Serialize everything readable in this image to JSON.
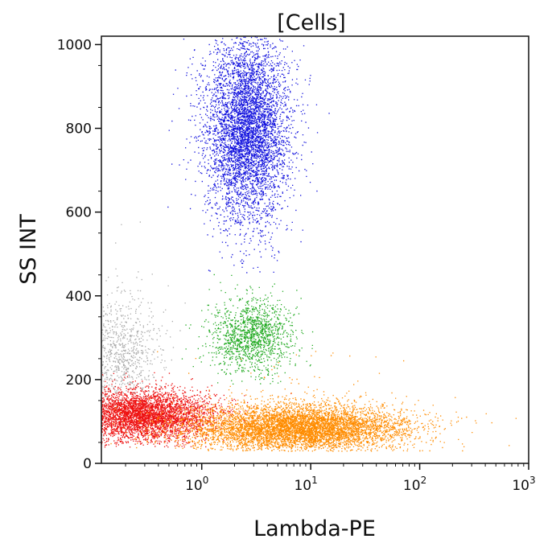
{
  "chart_data": {
    "type": "scatter",
    "title": "[Cells]",
    "xlabel": "Lambda-PE",
    "ylabel": "SS INT",
    "x_scale": "log",
    "xlim": [
      0.12,
      1000
    ],
    "ylim": [
      0,
      1020
    ],
    "x_ticks": [
      {
        "value": 1,
        "base": "10",
        "exp": "0"
      },
      {
        "value": 10,
        "base": "10",
        "exp": "1"
      },
      {
        "value": 100,
        "base": "10",
        "exp": "2"
      },
      {
        "value": 1000,
        "base": "10",
        "exp": "3"
      }
    ],
    "y_ticks": [
      {
        "value": 0,
        "label": "0"
      },
      {
        "value": 200,
        "label": "200"
      },
      {
        "value": 400,
        "label": "400"
      },
      {
        "value": 600,
        "label": "600"
      },
      {
        "value": 800,
        "label": "800"
      },
      {
        "value": 1000,
        "label": "1000"
      }
    ],
    "grid": false,
    "legend": "none",
    "populations": [
      {
        "color": "#1010dd",
        "points": 5200,
        "x_center": 2.6,
        "x_spread_log10": 0.16,
        "y_center": 800,
        "y_spread": 110,
        "y_range": [
          450,
          1020
        ]
      },
      {
        "color": "#22aa22",
        "points": 1400,
        "x_center": 2.9,
        "x_spread_log10": 0.15,
        "y_center": 305,
        "y_spread": 45,
        "y_range": [
          190,
          470
        ]
      },
      {
        "color": "#aaaaaa",
        "points": 900,
        "x_center": 0.17,
        "x_spread_log10": 0.15,
        "y_center": 260,
        "y_spread": 70,
        "y_range": [
          130,
          600
        ]
      },
      {
        "color": "#ee1111",
        "points": 4500,
        "x_center": 0.28,
        "x_spread_log10": 0.28,
        "y_center": 115,
        "y_spread": 30,
        "y_range": [
          40,
          230
        ]
      },
      {
        "color": "#ff8c00",
        "points": 6500,
        "x_center": 7.5,
        "x_spread_log10": 0.42,
        "y_center": 85,
        "y_spread": 28,
        "y_range": [
          30,
          280
        ]
      }
    ]
  }
}
